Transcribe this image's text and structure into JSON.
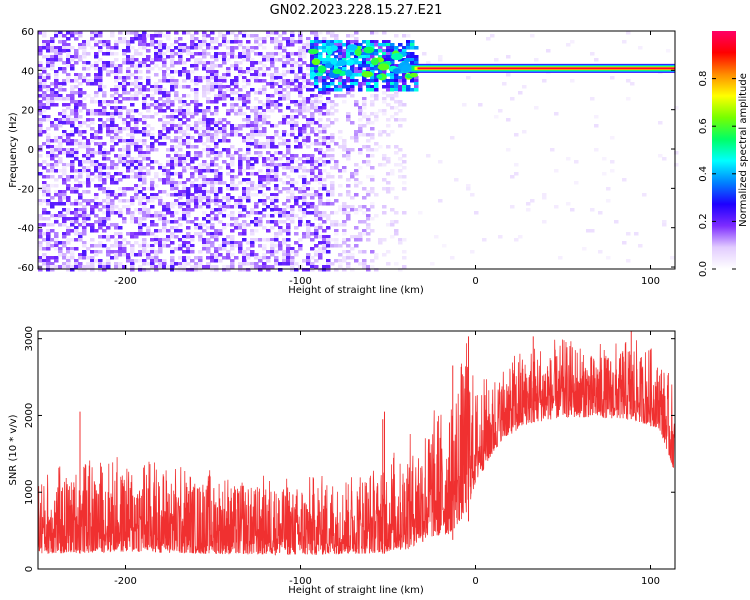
{
  "title": "GN02.2023.228.15.27.E21",
  "chart_data": [
    {
      "type": "heatmap",
      "xlabel": "Height of straight line (km)",
      "ylabel": "Frequency (Hz)",
      "xlim": [
        -250,
        114
      ],
      "ylim": [
        -61,
        60
      ],
      "xticks": [
        -200,
        -100,
        0,
        100
      ],
      "yticks": [
        -60,
        -40,
        -20,
        0,
        20,
        40,
        60
      ],
      "colorbar": {
        "label": "Normalized spectral amplitude",
        "range": [
          0,
          1
        ],
        "ticks": [
          0.0,
          0.2,
          0.4,
          0.6,
          0.8
        ],
        "colormap": [
          "#ffffff",
          "#e2ccff",
          "#7d2cff",
          "#1d00ff",
          "#0082ff",
          "#00ffff",
          "#00ff66",
          "#77ff00",
          "#ffff00",
          "#ff8c00",
          "#ff0000",
          "#ff0066"
        ]
      },
      "regions": [
        {
          "description_x_range": [
            -250,
            -85
          ],
          "freq_range": [
            -60,
            60
          ],
          "amplitude": "0.05-0.25 (scattered noise)"
        },
        {
          "description_x_range": [
            -85,
            -40
          ],
          "freq_range": [
            -60,
            60
          ],
          "amplitude": "0.02-0.12 (faint speckle)"
        },
        {
          "description_x_range": [
            -95,
            -35
          ],
          "freq_range": [
            30,
            55
          ],
          "amplitude": "0.2-0.5 (transition)"
        },
        {
          "description_x_range": [
            -40,
            114
          ],
          "freq_range": [
            40,
            42
          ],
          "amplitude": "0.8-1.0 (single tone)"
        }
      ],
      "tone": {
        "frequency": 41,
        "start_x": -40,
        "end_x": 114
      }
    },
    {
      "type": "line",
      "xlabel": "Height of straight line (km)",
      "ylabel": "SNR (10 * v/v)",
      "xlim": [
        -250,
        114
      ],
      "ylim": [
        0,
        3100
      ],
      "xticks": [
        -200,
        -100,
        0,
        100
      ],
      "yticks": [
        0,
        1000,
        2000,
        3000
      ],
      "series": [
        {
          "color": "#f03030",
          "envelope": {
            "x": [
              -250,
              -200,
              -150,
              -100,
              -60,
              -40,
              -25,
              -15,
              -5,
              0,
              15,
              30,
              50,
              70,
              90,
              105,
              114
            ],
            "low": [
              0,
              0,
              0,
              0,
              0,
              0,
              100,
              150,
              300,
              900,
              1500,
              1700,
              1800,
              1800,
              1750,
              1650,
              1050
            ],
            "high": [
              1300,
              1500,
              1300,
              1200,
              1350,
              1700,
              2100,
              2200,
              3050,
              2400,
              2700,
              2950,
              3000,
              2950,
              3000,
              2850,
              2350
            ]
          },
          "spikes": [
            {
              "x": -226,
              "y": 2050
            },
            {
              "x": -53,
              "y": 1950
            },
            {
              "x": -52,
              "y": 2050
            },
            {
              "x": -13,
              "y": 2650
            },
            {
              "x": -4,
              "y": 3030
            },
            {
              "x": 33,
              "y": 3030
            },
            {
              "x": 89,
              "y": 3100
            }
          ]
        }
      ]
    }
  ]
}
